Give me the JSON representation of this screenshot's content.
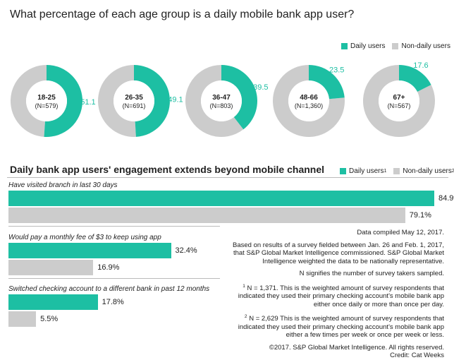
{
  "title": "What percentage of each age group is a daily mobile bank app user?",
  "colors": {
    "daily": "#1dbfa3",
    "nondaily": "#cccccc"
  },
  "legend_top": {
    "daily": "Daily users",
    "nondaily": "Non-daily users"
  },
  "engagement_title": "Daily bank app users' engagement extends beyond mobile channel",
  "legend_bottom": {
    "daily": "Daily users",
    "daily_sup": "1",
    "nondaily": "Non-daily users",
    "nondaily_sup": "2"
  },
  "chart_data": [
    {
      "type": "pie",
      "title": "What percentage of each age group is a daily mobile bank app user?",
      "series": [
        {
          "name": "Daily users",
          "values": [
            51.1,
            49.1,
            39.5,
            23.5,
            17.6
          ]
        }
      ],
      "categories": [
        {
          "group": "18-25",
          "n": "(N=579)"
        },
        {
          "group": "26-35",
          "n": "(N=691)"
        },
        {
          "group": "36-47",
          "n": "(N=803)"
        },
        {
          "group": "48-66",
          "n": "(N=1,360)"
        },
        {
          "group": "67+",
          "n": "(N=567)"
        }
      ],
      "value_labels": [
        "51.1",
        "49.1",
        "39.5",
        "23.5",
        "17.6"
      ],
      "legend": [
        "Daily users",
        "Non-daily users"
      ]
    },
    {
      "type": "bar",
      "title": "Daily bank app users' engagement extends beyond mobile channel",
      "categories": [
        "Have visited branch in last 30 days",
        "Would pay a monthly fee of $3 to keep using app",
        "Switched checking account to a different bank in past 12 months"
      ],
      "series": [
        {
          "name": "Daily users",
          "values": [
            84.9,
            32.4,
            17.8
          ],
          "labels": [
            "84.9%",
            "32.4%",
            "17.8%"
          ]
        },
        {
          "name": "Non-daily users",
          "values": [
            79.1,
            16.9,
            5.5
          ],
          "labels": [
            "79.1%",
            "16.9%",
            "5.5%"
          ]
        }
      ],
      "xlim": [
        0,
        100
      ]
    }
  ],
  "notes": {
    "compiled": "Data compiled May 12, 2017.",
    "survey": "Based on results of a survey fielded between Jan. 26 and Feb. 1, 2017, that S&P Global Market Intelligence commissioned. S&P Global Market Intelligence weighted the data to be nationally representative.",
    "n_sig": "N signifies the number of survey takers sampled.",
    "note1_sup": "1",
    "note1": "N = 1,371. This is the weighted amount of survey respondents that indicated they used their primary checking account's mobile bank app either once daily or more than once per day.",
    "note2_sup": "2",
    "note2": "N = 2,629 This is the weighted amount of survey respondents that indicated they used their primary checking account's mobile bank app either a few times per week or once per week or less.",
    "copyright": "©2017. S&P Global Market Intelligence. All rights reserved.",
    "credit": "Credit: Cat Weeks"
  }
}
